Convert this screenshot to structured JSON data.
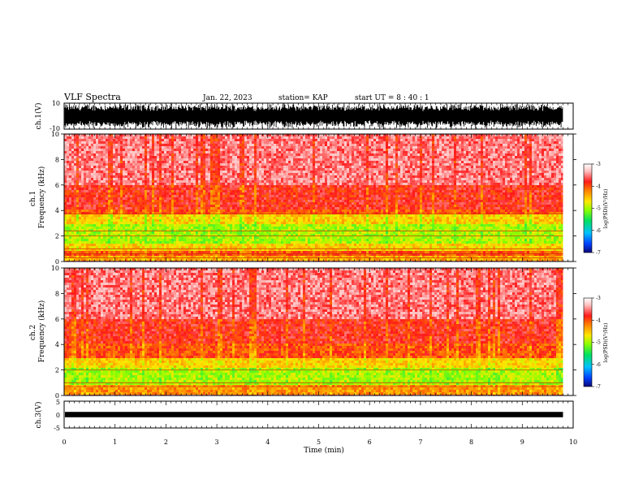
{
  "header": {
    "title": "VLF Spectra",
    "date": "Jan. 22, 2023",
    "station": "station= KAP",
    "start": "start  UT =   8 : 40 : 1"
  },
  "colors": {
    "waveform": "#000000",
    "colorscale": [
      "#0a0a78",
      "#0040ff",
      "#00c0ff",
      "#00e060",
      "#8cff00",
      "#ffe600",
      "#ff8000",
      "#ff1a1a",
      "#ffd6d6",
      "#ffffff"
    ]
  },
  "chart_data": [
    {
      "type": "line",
      "panel": "ch.1 waveform",
      "ylabel": "ch.1(V)",
      "ylim": [
        -10,
        10
      ],
      "yticks": [
        "10",
        "-10"
      ],
      "xlim": [
        0,
        10
      ],
      "shown_extent_min": 9.8,
      "description_values": {
        "amplitude_range": [
          -10,
          10
        ]
      }
    },
    {
      "type": "heatmap",
      "panel": "ch.1 spectrogram",
      "ylabel": "ch.1\nFrequency (kHz)",
      "ylim": [
        0,
        10
      ],
      "yticks": [
        "0",
        "2",
        "4",
        "6",
        "8",
        "10"
      ],
      "xlim": [
        0,
        10
      ],
      "shown_extent_min": 9.8,
      "colorbar": {
        "label": "log(PSD)(V²/Hz)",
        "range": [
          -7,
          -3
        ],
        "ticks": [
          "-3",
          "-4",
          "-5",
          "-6",
          "-7"
        ]
      },
      "band_profile_khz": [
        {
          "f": [
            0,
            0.4
          ],
          "level": -4.4
        },
        {
          "f": [
            0.4,
            0.9
          ],
          "level": -4.0
        },
        {
          "f": [
            0.9,
            1.4
          ],
          "level": -4.6
        },
        {
          "f": [
            1.4,
            3.0
          ],
          "level": -5.0
        },
        {
          "f": [
            3.0,
            3.6
          ],
          "level": -4.6
        },
        {
          "f": [
            3.6,
            4.0
          ],
          "level": -4.0
        },
        {
          "f": [
            4.0,
            6.0
          ],
          "level": -3.8
        },
        {
          "f": [
            6.0,
            10.0
          ],
          "level": -3.5
        }
      ],
      "lines_khz": [
        0.3,
        0.6,
        1.0,
        2.0,
        2.4,
        3.75
      ]
    },
    {
      "type": "heatmap",
      "panel": "ch.2 spectrogram",
      "ylabel": "ch.2\nFrequency (kHz)",
      "ylim": [
        0,
        10
      ],
      "yticks": [
        "0",
        "2",
        "4",
        "6",
        "8",
        "10"
      ],
      "xlim": [
        0,
        10
      ],
      "shown_extent_min": 9.8,
      "colorbar": {
        "label": "log(PSD)(V²/Hz)",
        "range": [
          -7,
          -3
        ],
        "ticks": [
          "-3",
          "-4",
          "-5",
          "-6",
          "-7"
        ]
      },
      "band_profile_khz": [
        {
          "f": [
            0,
            0.4
          ],
          "level": -4.3
        },
        {
          "f": [
            0.4,
            0.9
          ],
          "level": -4.3
        },
        {
          "f": [
            0.9,
            2.2
          ],
          "level": -5.0
        },
        {
          "f": [
            2.2,
            2.9
          ],
          "level": -4.6
        },
        {
          "f": [
            2.9,
            4.0
          ],
          "level": -4.0
        },
        {
          "f": [
            4.0,
            6.0
          ],
          "level": -3.8
        },
        {
          "f": [
            6.0,
            10.0
          ],
          "level": -3.5
        }
      ],
      "lines_khz": [
        0.7,
        1.0,
        2.0
      ]
    },
    {
      "type": "line",
      "panel": "ch.3 waveform",
      "ylabel": "ch.3(V)",
      "ylim": [
        -5,
        5
      ],
      "yticks": [
        "5",
        "0",
        "-5"
      ],
      "xlim": [
        0,
        10
      ],
      "shown_extent_min": 9.8,
      "description_values": {
        "amplitude_range": [
          -1,
          1
        ]
      }
    }
  ],
  "xaxis": {
    "label": "Time (min)",
    "ticks": [
      "0",
      "1",
      "2",
      "3",
      "4",
      "5",
      "6",
      "7",
      "8",
      "9",
      "10"
    ]
  }
}
